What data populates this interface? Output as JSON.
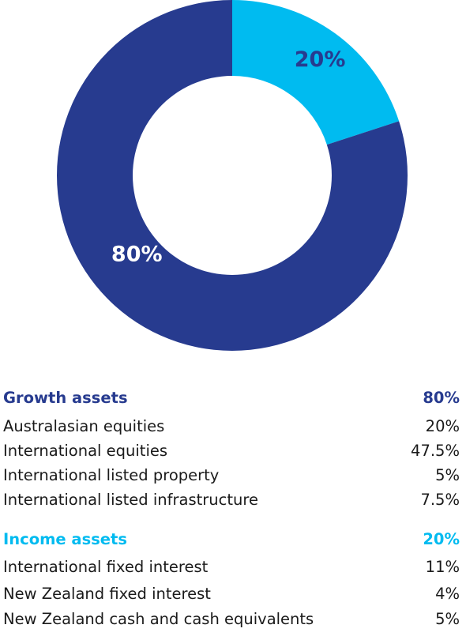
{
  "colors": {
    "growth": "#273b8f",
    "income": "#00bbf0",
    "text": "#1a1a1a",
    "background": "#ffffff"
  },
  "chart_data": {
    "type": "pie",
    "variant": "donut",
    "slices": [
      {
        "label": "20%",
        "value": 20,
        "color": "#00bbf0"
      },
      {
        "label": "80%",
        "value": 80,
        "color": "#273b8f"
      }
    ]
  },
  "groups": [
    {
      "name": "Growth assets",
      "total": "80%",
      "color": "#273b8f",
      "items": [
        {
          "label": "Australasian equities",
          "value": "20%"
        },
        {
          "label": "International equities",
          "value": "47.5%"
        },
        {
          "label": "International listed property",
          "value": "5%"
        },
        {
          "label": "International listed infrastructure",
          "value": "7.5%"
        }
      ]
    },
    {
      "name": "Income assets",
      "total": "20%",
      "color": "#00bbf0",
      "items": [
        {
          "label": "International fixed interest",
          "value": "11%"
        },
        {
          "label": "New Zealand fixed interest",
          "value": "4%"
        },
        {
          "label": "New Zealand cash and cash equivalents",
          "value": "5%"
        }
      ]
    }
  ]
}
